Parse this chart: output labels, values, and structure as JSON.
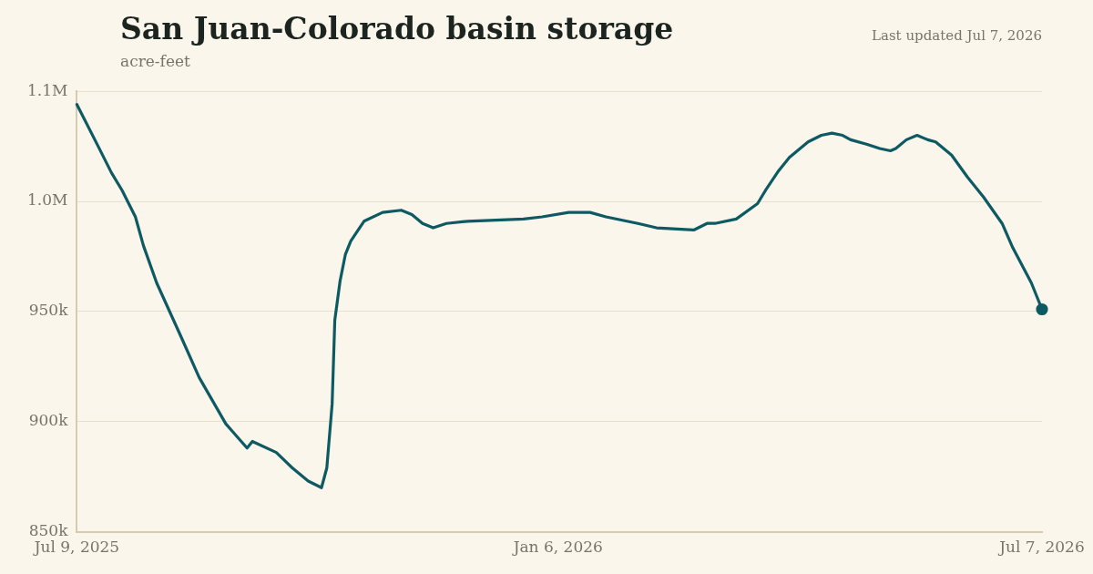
{
  "chart_data": {
    "type": "line",
    "title": "San Juan-Colorado basin storage",
    "subtitle": "acre-feet",
    "annotations": [
      "Last updated Jul 7, 2026"
    ],
    "x": [
      "2025-07-09",
      "2025-07-17",
      "2025-07-22",
      "2025-07-26",
      "2025-07-31",
      "2025-08-03",
      "2025-08-08",
      "2025-08-17",
      "2025-08-24",
      "2025-09-03",
      "2025-09-11",
      "2025-09-13",
      "2025-09-22",
      "2025-09-28",
      "2025-10-04",
      "2025-10-09",
      "2025-10-11",
      "2025-10-13",
      "2025-10-14",
      "2025-10-16",
      "2025-10-18",
      "2025-10-20",
      "2025-10-25",
      "2025-11-01",
      "2025-11-08",
      "2025-11-12",
      "2025-11-16",
      "2025-11-20",
      "2025-11-25",
      "2025-12-03",
      "2025-12-24",
      "2025-12-31",
      "2026-01-10",
      "2026-01-18",
      "2026-01-24",
      "2026-02-05",
      "2026-02-12",
      "2026-02-26",
      "2026-03-03",
      "2026-03-06",
      "2026-03-14",
      "2026-03-22",
      "2026-03-25",
      "2026-03-30",
      "2026-04-03",
      "2026-04-10",
      "2026-04-15",
      "2026-04-19",
      "2026-04-23",
      "2026-04-26",
      "2026-05-02",
      "2026-05-07",
      "2026-05-11",
      "2026-05-13",
      "2026-05-17",
      "2026-05-21",
      "2026-05-25",
      "2026-05-28",
      "2026-06-03",
      "2026-06-09",
      "2026-06-15",
      "2026-06-22",
      "2026-06-26",
      "2026-07-03",
      "2026-07-07"
    ],
    "series": [
      {
        "color": "#0e5a63",
        "values": [
          1044000,
          1025000,
          1013000,
          1005000,
          993000,
          980000,
          963000,
          939000,
          920000,
          899000,
          888000,
          891000,
          886000,
          879000,
          873000,
          870000,
          879000,
          908000,
          946000,
          964000,
          976000,
          982000,
          991000,
          995000,
          996000,
          994000,
          990000,
          988000,
          990000,
          991000,
          992000,
          993000,
          995000,
          995000,
          993000,
          990000,
          988000,
          987000,
          990000,
          990000,
          992000,
          999000,
          1005000,
          1014000,
          1020000,
          1027000,
          1030000,
          1031000,
          1030000,
          1028000,
          1026000,
          1024000,
          1023000,
          1024000,
          1028000,
          1030000,
          1028000,
          1027000,
          1021000,
          1011000,
          1002000,
          990000,
          979000,
          963000,
          951000
        ]
      }
    ],
    "ylim": [
      850000,
      1050000
    ],
    "yticks": [
      {
        "value": 1050000,
        "label": "1.1M"
      },
      {
        "value": 1000000,
        "label": "1.0M"
      },
      {
        "value": 950000,
        "label": "950k"
      },
      {
        "value": 900000,
        "label": "900k"
      },
      {
        "value": 850000,
        "label": "850k"
      }
    ],
    "xlim": [
      "2025-07-09",
      "2026-07-07"
    ],
    "xticks": [
      {
        "value": "2025-07-09",
        "label": "Jul 9, 2025"
      },
      {
        "value": "2026-01-06",
        "label": "Jan 6, 2026"
      },
      {
        "value": "2026-07-07",
        "label": "Jul 7, 2026"
      }
    ],
    "grid": "y",
    "legend": false
  }
}
